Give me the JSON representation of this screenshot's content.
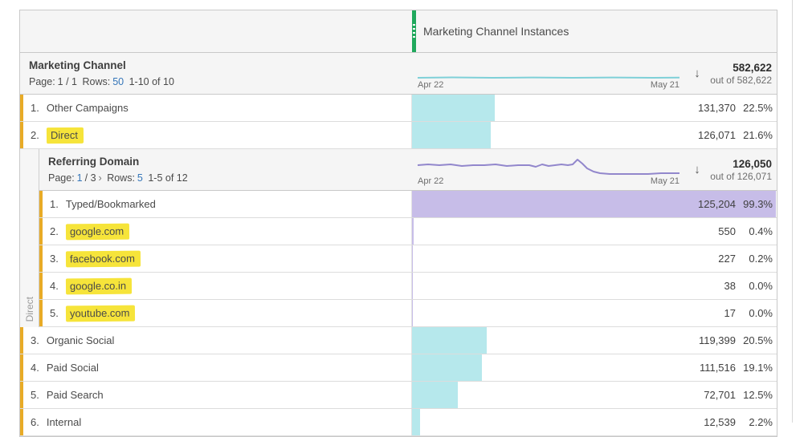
{
  "colors": {
    "accent_green": "#1fa85c",
    "bar_cyan": "#b6e8ec",
    "bar_purple": "#c7bde8",
    "sparkline_purple": "#9287cc",
    "sparkline_teal": "#7fd0d8",
    "highlight_yellow": "#f6e43a",
    "row_strip_yellow": "#e8ab27",
    "link_blue": "#3576b9"
  },
  "panel": {
    "metric_header": {
      "title": "Marketing Channel Instances"
    },
    "outer": {
      "title": "Marketing Channel",
      "pagination": {
        "page_label": "Page:",
        "page_value": "1 / 1",
        "rows_label": "Rows:",
        "rows_value": "50",
        "range": "1-10 of 10"
      },
      "axis": {
        "start": "Apr 22",
        "end": "May 21"
      },
      "sort_icon": "↓",
      "total": {
        "value": "582,622",
        "out_of": "out of 582,622"
      }
    },
    "inner": {
      "group_label": "Direct",
      "title": "Referring Domain",
      "pagination": {
        "page_label": "Page:",
        "page_current": "1",
        "page_rest": "/ 3",
        "chevron": "›",
        "rows_label": "Rows:",
        "rows_value": "5",
        "range": "1-5 of 12"
      },
      "axis": {
        "start": "Apr 22",
        "end": "May 21"
      },
      "sort_icon": "↓",
      "total": {
        "value": "126,050",
        "out_of": "out of 126,071"
      }
    },
    "rows_top": [
      {
        "index": "1.",
        "name": "Other Campaigns",
        "highlighted": false,
        "value": "131,370",
        "pct": "22.5%",
        "bar_pct": 22.5
      },
      {
        "index": "2.",
        "name": "Direct",
        "highlighted": true,
        "value": "126,071",
        "pct": "21.6%",
        "bar_pct": 21.6
      }
    ],
    "inner_rows": [
      {
        "index": "1.",
        "name": "Typed/Bookmarked",
        "highlighted": false,
        "value": "125,204",
        "pct": "99.3%",
        "bar_pct": 99.3
      },
      {
        "index": "2.",
        "name": "google.com",
        "highlighted": true,
        "value": "550",
        "pct": "0.4%",
        "bar_pct": 0.4
      },
      {
        "index": "3.",
        "name": "facebook.com",
        "highlighted": true,
        "value": "227",
        "pct": "0.2%",
        "bar_pct": 0.2
      },
      {
        "index": "4.",
        "name": "google.co.in",
        "highlighted": true,
        "value": "38",
        "pct": "0.0%",
        "bar_pct": 0.0
      },
      {
        "index": "5.",
        "name": "youtube.com",
        "highlighted": true,
        "value": "17",
        "pct": "0.0%",
        "bar_pct": 0.0
      }
    ],
    "rows_bottom": [
      {
        "index": "3.",
        "name": "Organic Social",
        "highlighted": false,
        "value": "119,399",
        "pct": "20.5%",
        "bar_pct": 20.5
      },
      {
        "index": "4.",
        "name": "Paid Social",
        "highlighted": false,
        "value": "111,516",
        "pct": "19.1%",
        "bar_pct": 19.1
      },
      {
        "index": "5.",
        "name": "Paid Search",
        "highlighted": false,
        "value": "72,701",
        "pct": "12.5%",
        "bar_pct": 12.5
      },
      {
        "index": "6.",
        "name": "Internal",
        "highlighted": false,
        "value": "12,539",
        "pct": "2.2%",
        "bar_pct": 2.2
      }
    ]
  }
}
